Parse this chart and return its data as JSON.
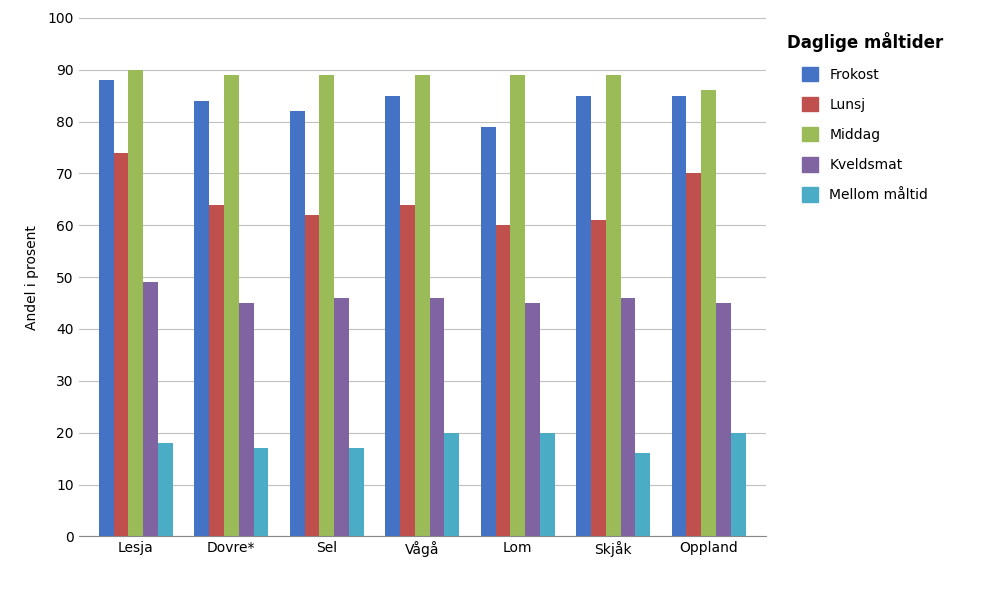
{
  "categories": [
    "Lesja",
    "Dovre*",
    "Sel",
    "Vågå",
    "Lom",
    "Skjåk",
    "Oppland"
  ],
  "series": {
    "Frokost": [
      88,
      84,
      82,
      85,
      79,
      85,
      85
    ],
    "Lunsj": [
      74,
      64,
      62,
      64,
      60,
      61,
      70
    ],
    "Middag": [
      90,
      89,
      89,
      89,
      89,
      89,
      86
    ],
    "Kveldsmat": [
      49,
      45,
      46,
      46,
      45,
      46,
      45
    ],
    "Mellom måltid": [
      18,
      17,
      17,
      20,
      20,
      16,
      20
    ]
  },
  "colors": {
    "Frokost": "#4472C4",
    "Lunsj": "#C0504D",
    "Middag": "#9BBB59",
    "Kveldsmat": "#8064A2",
    "Mellom måltid": "#4BACC6"
  },
  "legend_title": "Daglige måltider",
  "ylabel": "Andel i prosent",
  "ylim": [
    0,
    100
  ],
  "yticks": [
    0,
    10,
    20,
    30,
    40,
    50,
    60,
    70,
    80,
    90,
    100
  ],
  "background_color": "#FFFFFF",
  "grid_color": "#C0C0C0"
}
